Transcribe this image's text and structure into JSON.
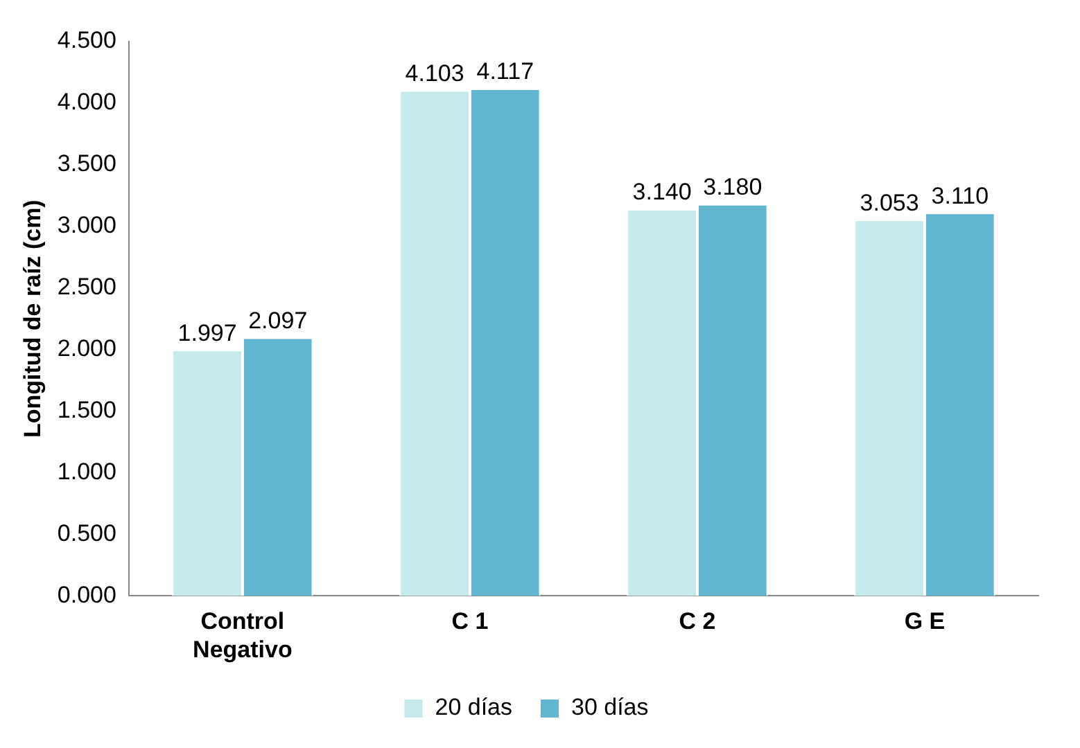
{
  "chart_data": {
    "type": "bar",
    "ylabel": "Longitud de raíz (cm)",
    "categories": [
      "Control Negativo",
      "C 1",
      "C 2",
      "G E"
    ],
    "series": [
      {
        "name": "20 días",
        "color": "#c6e9ec",
        "values": [
          1.997,
          4.103,
          3.14,
          3.053
        ],
        "value_labels": [
          "1.997",
          "4.103",
          "3.140",
          "3.053"
        ]
      },
      {
        "name": "30 días",
        "color": "#62b6d0",
        "values": [
          2.097,
          4.117,
          3.18,
          3.11
        ],
        "value_labels": [
          "2.097",
          "4.117",
          "3.180",
          "3.110"
        ]
      }
    ],
    "ylim": [
      0,
      4.5
    ],
    "yticks": [
      {
        "value": 0,
        "label": "0.000"
      },
      {
        "value": 0.5,
        "label": "0.500"
      },
      {
        "value": 1,
        "label": "1.000"
      },
      {
        "value": 1.5,
        "label": "1.500"
      },
      {
        "value": 2,
        "label": "2.000"
      },
      {
        "value": 2.5,
        "label": "2.500"
      },
      {
        "value": 3,
        "label": "3.000"
      },
      {
        "value": 3.5,
        "label": "3.500"
      },
      {
        "value": 4,
        "label": "4.000"
      },
      {
        "value": 4.5,
        "label": "4.500"
      }
    ],
    "grid": false,
    "legend": "bottom"
  }
}
